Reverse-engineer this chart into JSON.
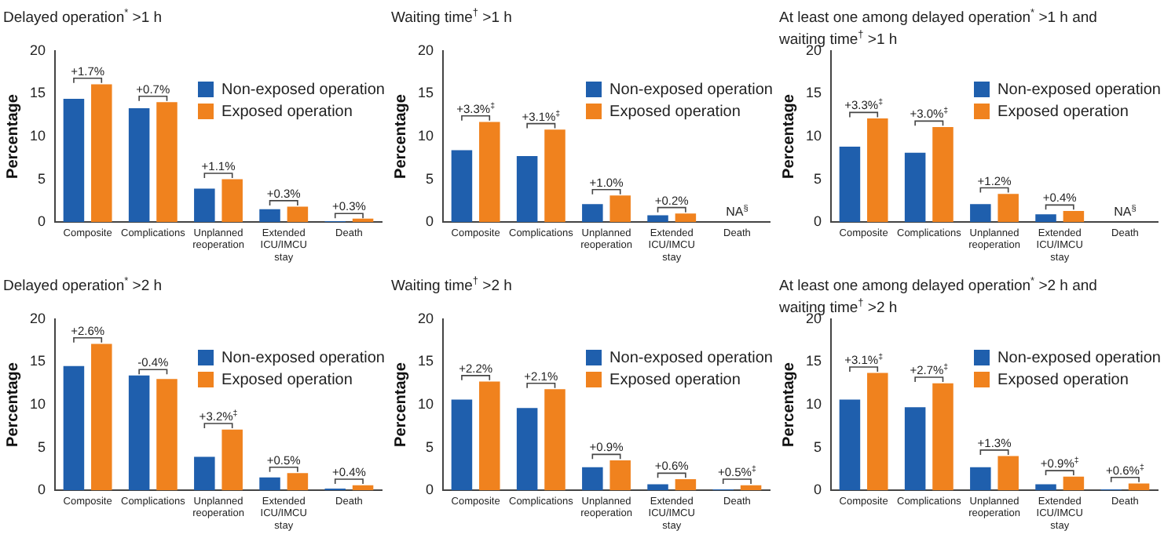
{
  "chart_data": [
    {
      "type": "bar",
      "title": "Delayed operation$^{*}$ >1 h",
      "ylabel": "Percentage",
      "categories": [
        "Composite",
        "Complications",
        "Unplanned reoperation",
        "Extended ICU/IMCU stay",
        "Death"
      ],
      "series": [
        {
          "name": "Non-exposed operation",
          "color": "#1f5fad",
          "values": [
            14.4,
            13.3,
            3.9,
            1.5,
            0.1
          ]
        },
        {
          "name": "Exposed operation",
          "color": "#f0821e",
          "values": [
            16.1,
            14.0,
            5.0,
            1.8,
            0.4
          ]
        }
      ],
      "ylim": [
        0,
        20
      ],
      "yticks": [
        0,
        5,
        10,
        15,
        20
      ],
      "grid": false,
      "legend": "top right",
      "annotations": [
        {
          "text": "+1.7%",
          "x": "Composite",
          "y": 16.8
        },
        {
          "text": "+0.7%",
          "x": "Complications",
          "y": 14.7
        },
        {
          "text": "+1.1%",
          "x": "Unplanned reoperation",
          "y": 5.7
        },
        {
          "text": "+0.3%",
          "x": "Extended ICU/IMCU stay",
          "y": 2.5
        },
        {
          "text": "+0.3%",
          "x": "Death",
          "y": 1.0
        }
      ]
    },
    {
      "type": "bar",
      "title": "Waiting time$^{†}$ >1 h",
      "ylabel": "Percentage",
      "categories": [
        "Composite",
        "Complications",
        "Unplanned reoperation",
        "Extended ICU/IMCU stay",
        "Death"
      ],
      "series": [
        {
          "name": "Non-exposed operation",
          "color": "#1f5fad",
          "values": [
            8.4,
            7.7,
            2.1,
            0.8,
            null
          ]
        },
        {
          "name": "Exposed operation",
          "color": "#f0821e",
          "values": [
            11.7,
            10.8,
            3.1,
            1.0,
            null
          ]
        }
      ],
      "ylim": [
        0,
        20
      ],
      "yticks": [
        0,
        5,
        10,
        15,
        20
      ],
      "grid": false,
      "legend": "top right",
      "annotations": [
        {
          "text": "+3.3%$^{‡}$",
          "x": "Composite",
          "y": 12.4
        },
        {
          "text": "+3.1%$^{‡}$",
          "x": "Complications",
          "y": 11.5
        },
        {
          "text": "+1.0%",
          "x": "Unplanned reoperation",
          "y": 3.8
        },
        {
          "text": "+0.2%",
          "x": "Extended ICU/IMCU stay",
          "y": 1.7
        },
        "NA$^{§}$"
      ]
    },
    {
      "type": "bar",
      "title": "At least one among delayed operation$^{*}$ >1 h and waiting time$^{†}$ >1 h",
      "ylabel": "Percentage",
      "categories": [
        "Composite",
        "Complications",
        "Unplanned reoperation",
        "Extended ICU/IMCU stay",
        "Death"
      ],
      "series": [
        {
          "name": "Non-exposed operation",
          "color": "#1f5fad",
          "values": [
            8.8,
            8.1,
            2.1,
            0.9,
            null
          ]
        },
        {
          "name": "Exposed operation",
          "color": "#f0821e",
          "values": [
            12.1,
            11.1,
            3.3,
            1.3,
            null
          ]
        }
      ],
      "ylim": [
        0,
        20
      ],
      "yticks": [
        0,
        5,
        10,
        15,
        20
      ],
      "grid": false,
      "legend": "top right",
      "annotations": [
        {
          "text": "+3.3%$^{‡}$",
          "x": "Composite",
          "y": 12.8
        },
        {
          "text": "+3.0%$^{‡}$",
          "x": "Complications",
          "y": 11.8
        },
        {
          "text": "+1.2%",
          "x": "Unplanned reoperation",
          "y": 4.0
        },
        {
          "text": "+0.4%",
          "x": "Extended ICU/IMCU stay",
          "y": 2.0
        },
        "NA$^{§}$"
      ]
    },
    {
      "type": "bar",
      "title": "Delayed operation$^{*}$ >2 h",
      "ylabel": "Percentage",
      "categories": [
        "Composite",
        "Complications",
        "Unplanned reoperation",
        "Extended ICU/IMCU stay",
        "Death"
      ],
      "series": [
        {
          "name": "Non-exposed operation",
          "color": "#1f5fad",
          "values": [
            14.5,
            13.4,
            3.9,
            1.5,
            0.2
          ]
        },
        {
          "name": "Exposed operation",
          "color": "#f0821e",
          "values": [
            17.1,
            13.0,
            7.1,
            2.0,
            0.6
          ]
        }
      ],
      "ylim": [
        0,
        20
      ],
      "yticks": [
        0,
        5,
        10,
        15,
        20
      ],
      "grid": false,
      "legend": "top right",
      "annotations": [
        {
          "text": "+2.6%",
          "x": "Composite",
          "y": 17.8
        },
        {
          "text": "-0.4%",
          "x": "Complications",
          "y": 14.1
        },
        {
          "text": "+3.2%$^{‡}$",
          "x": "Unplanned reoperation",
          "y": 7.8
        },
        {
          "text": "+0.5%",
          "x": "Extended ICU/IMCU stay",
          "y": 2.7
        },
        {
          "text": "+0.4%",
          "x": "Death",
          "y": 1.3
        }
      ]
    },
    {
      "type": "bar",
      "title": "Waiting time$^{†}$ >2 h",
      "ylabel": "Percentage",
      "categories": [
        "Composite",
        "Complications",
        "Unplanned reoperation",
        "Extended ICU/IMCU stay",
        "Death"
      ],
      "series": [
        {
          "name": "Non-exposed operation",
          "color": "#1f5fad",
          "values": [
            10.6,
            9.6,
            2.7,
            0.7,
            0.1
          ]
        },
        {
          "name": "Exposed operation",
          "color": "#f0821e",
          "values": [
            12.7,
            11.8,
            3.5,
            1.3,
            0.6
          ]
        }
      ],
      "ylim": [
        0,
        20
      ],
      "yticks": [
        0,
        5,
        10,
        15,
        20
      ],
      "grid": false,
      "legend": "top right",
      "annotations": [
        {
          "text": "+2.2%",
          "x": "Composite",
          "y": 13.4
        },
        {
          "text": "+2.1%",
          "x": "Complications",
          "y": 12.5
        },
        {
          "text": "+0.9%",
          "x": "Unplanned reoperation",
          "y": 4.2
        },
        {
          "text": "+0.6%",
          "x": "Extended ICU/IMCU stay",
          "y": 2.0
        },
        {
          "text": "+0.5%$^{‡}$",
          "x": "Death",
          "y": 1.3
        }
      ]
    },
    {
      "type": "bar",
      "title": "At least one among delayed operation$^{*}$ >2 h and waiting time$^{†}$ >2 h",
      "ylabel": "Percentage",
      "categories": [
        "Composite",
        "Complications",
        "Unplanned reoperation",
        "Extended ICU/IMCU stay",
        "Death"
      ],
      "series": [
        {
          "name": "Non-exposed operation",
          "color": "#1f5fad",
          "values": [
            10.6,
            9.7,
            2.7,
            0.7,
            0.1
          ]
        },
        {
          "name": "Exposed operation",
          "color": "#f0821e",
          "values": [
            13.7,
            12.5,
            4.0,
            1.6,
            0.8
          ]
        }
      ],
      "ylim": [
        0,
        20
      ],
      "yticks": [
        0,
        5,
        10,
        15,
        20
      ],
      "grid": false,
      "legend": "top right",
      "annotations": [
        {
          "text": "+3.1%$^{‡}$",
          "x": "Composite",
          "y": 14.4
        },
        {
          "text": "+2.7%$^{‡}$",
          "x": "Complications",
          "y": 13.2
        },
        {
          "text": "+1.3%",
          "x": "Unplanned reoperation",
          "y": 4.7
        },
        {
          "text": "+0.9%$^{‡}$",
          "x": "Extended ICU/IMCU stay",
          "y": 2.3
        },
        {
          "text": "+0.6%$^{‡}$",
          "x": "Death",
          "y": 1.5
        }
      ]
    }
  ]
}
